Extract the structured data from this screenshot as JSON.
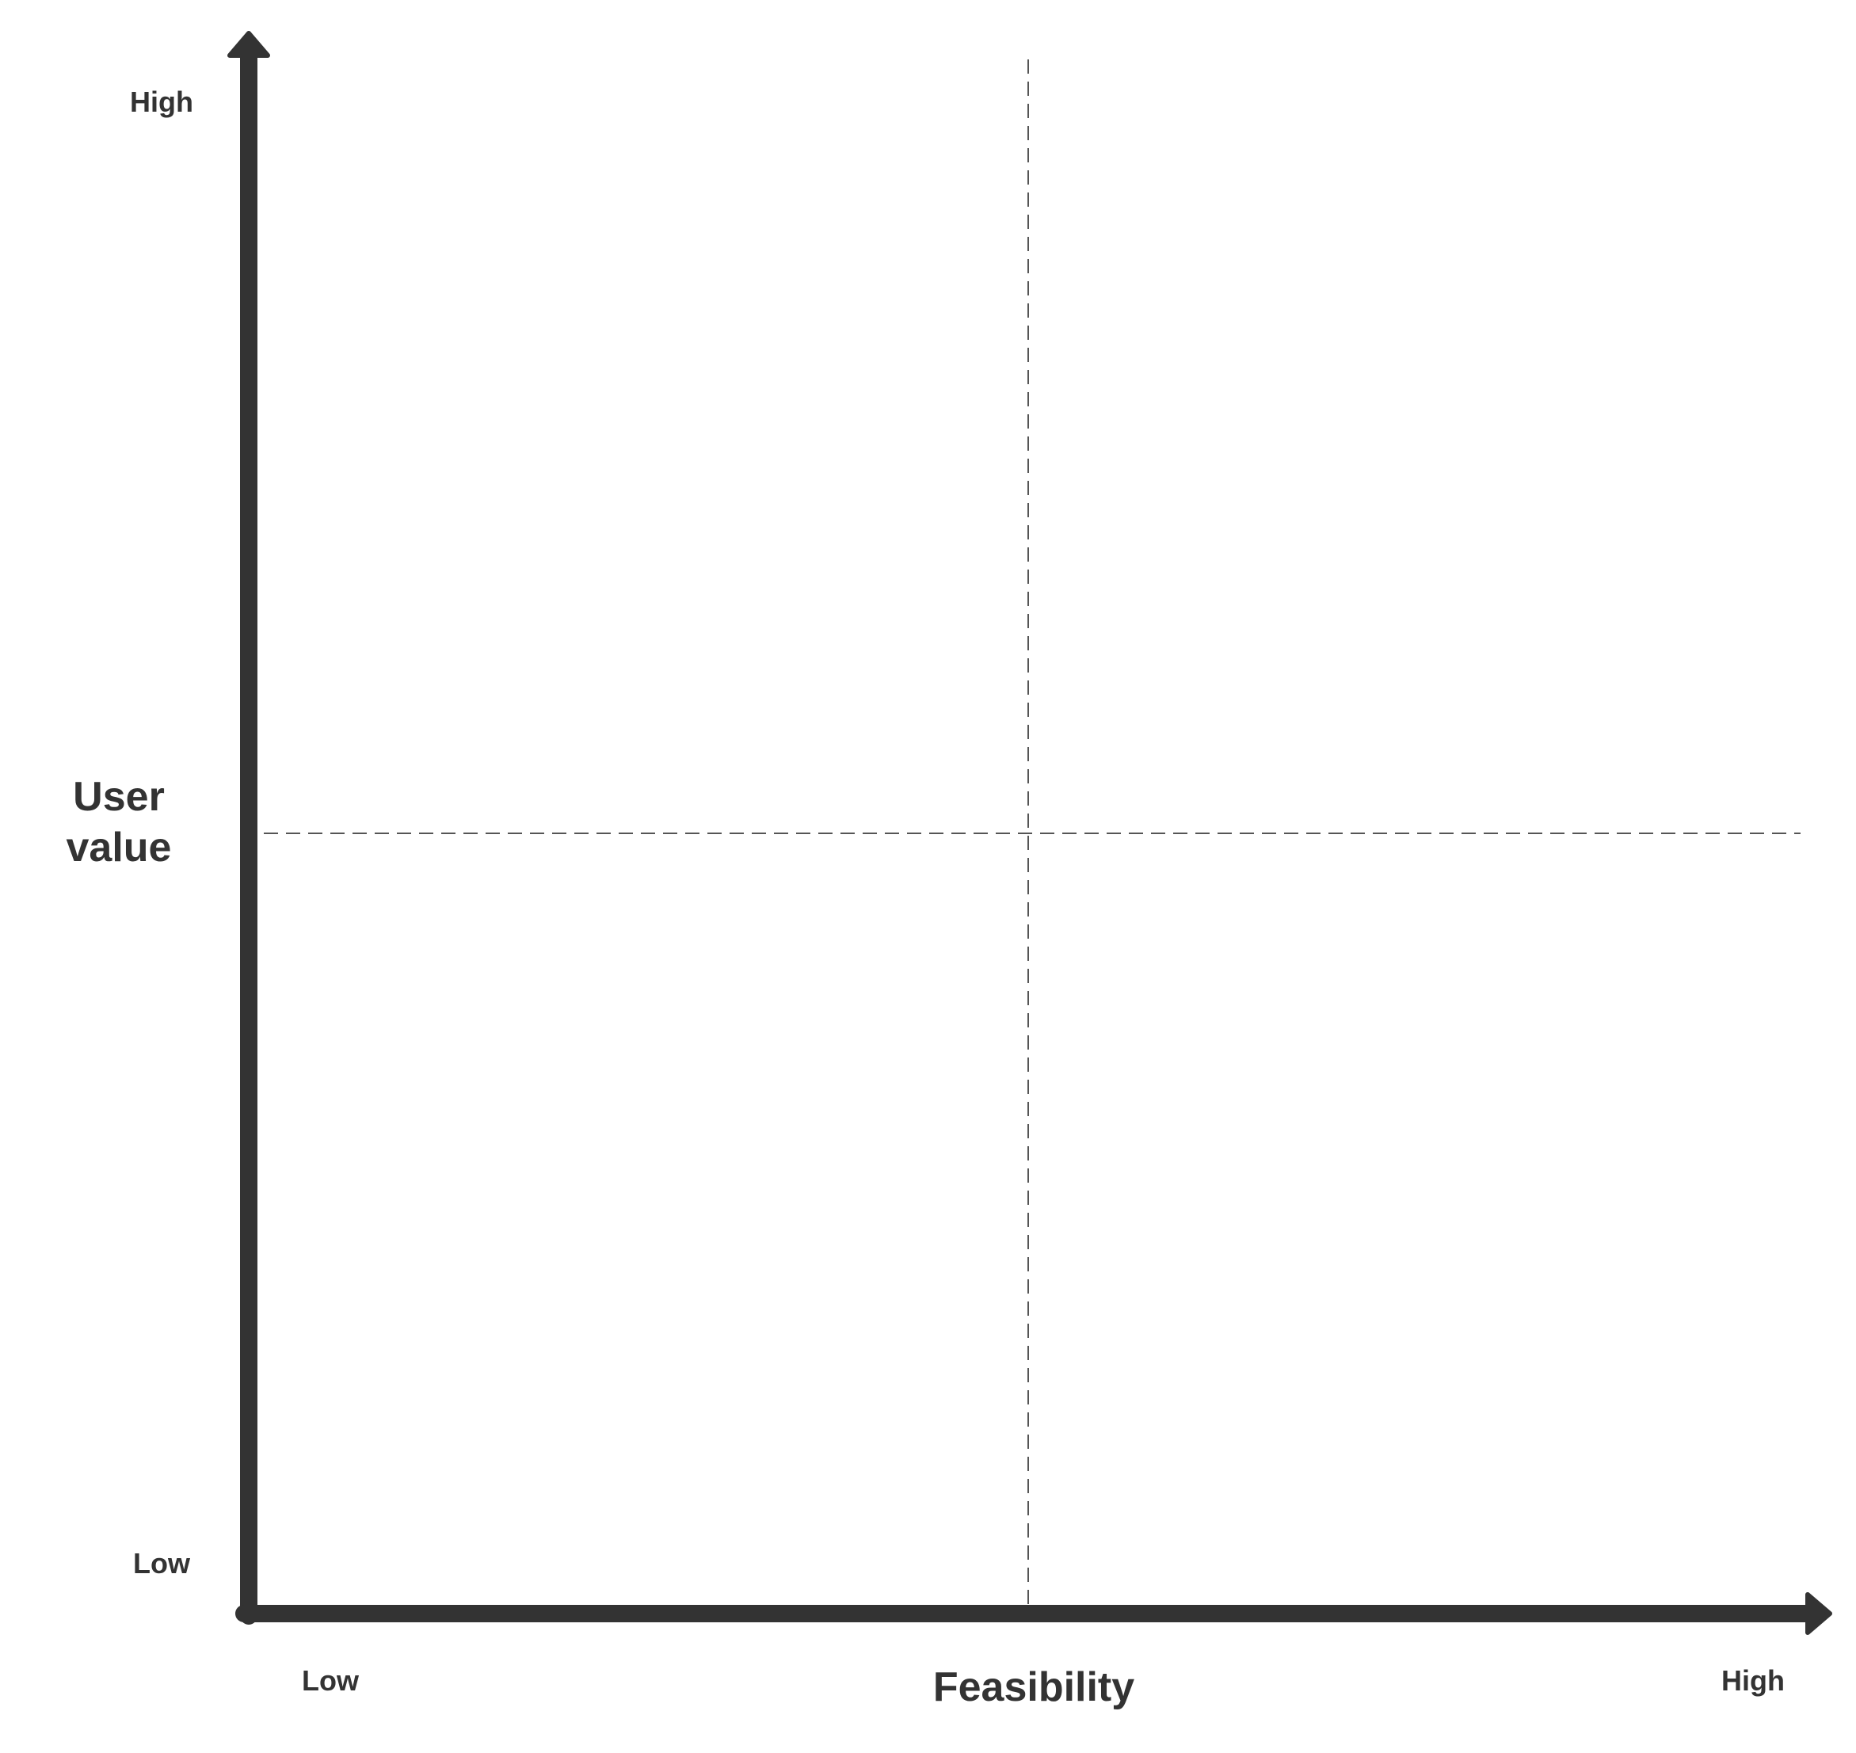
{
  "diagram": {
    "y_axis": {
      "title": "User value",
      "high": "High",
      "low": "Low"
    },
    "x_axis": {
      "title": "Feasibility",
      "low": "Low",
      "high": "High"
    }
  }
}
